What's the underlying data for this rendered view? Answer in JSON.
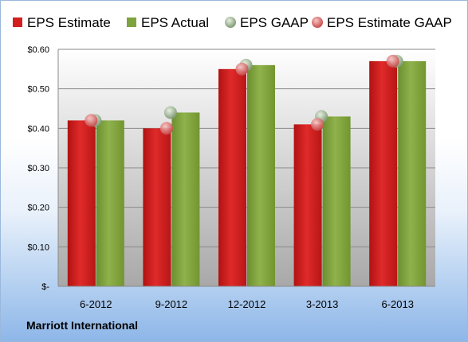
{
  "company": "Marriott International",
  "chart_data": {
    "type": "bar",
    "categories": [
      "6-2012",
      "9-2012",
      "12-2012",
      "3-2013",
      "6-2013"
    ],
    "series": [
      {
        "name": "EPS Estimate",
        "kind": "bar",
        "color": "#d41f1f",
        "values": [
          0.42,
          0.4,
          0.55,
          0.41,
          0.57
        ]
      },
      {
        "name": "EPS Actual",
        "kind": "bar",
        "color": "#7fa33f",
        "values": [
          0.42,
          0.44,
          0.56,
          0.43,
          0.57
        ]
      },
      {
        "name": "EPS GAAP",
        "kind": "marker",
        "color": "#a9bfa0",
        "values": [
          0.42,
          0.44,
          0.56,
          0.43,
          0.57
        ]
      },
      {
        "name": "EPS Estimate GAAP",
        "kind": "marker",
        "color": "#e07a7a",
        "values": [
          0.42,
          0.4,
          0.55,
          0.41,
          0.57
        ]
      }
    ],
    "y_ticks": [
      "$-",
      "$0.10",
      "$0.20",
      "$0.30",
      "$0.40",
      "$0.50",
      "$0.60"
    ],
    "ylim": [
      0,
      0.6
    ],
    "grid": true,
    "legend_position": "top"
  }
}
